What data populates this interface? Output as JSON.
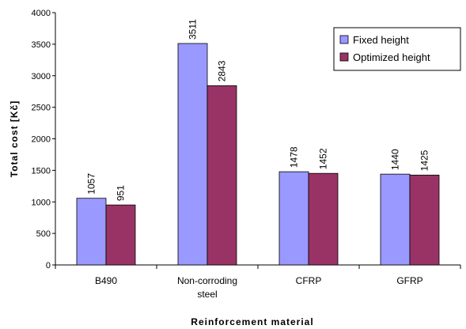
{
  "chart_data": {
    "type": "bar",
    "title": "",
    "xlabel": "Reinforcement material",
    "ylabel": "Total cost [Kč]",
    "ylim": [
      0,
      4000
    ],
    "yticks": [
      0,
      500,
      1000,
      1500,
      2000,
      2500,
      3000,
      3500,
      4000
    ],
    "categories": [
      [
        "B490"
      ],
      [
        "Non-corroding",
        "steel"
      ],
      [
        "CFRP"
      ],
      [
        "GFRP"
      ]
    ],
    "series": [
      {
        "name": "Fixed height",
        "color": "#9999ff",
        "values": [
          1057,
          3511,
          1478,
          1440
        ]
      },
      {
        "name": "Optimized height",
        "color": "#993366",
        "values": [
          951,
          2843,
          1452,
          1425
        ]
      }
    ],
    "grid": false,
    "legend": "top-right"
  }
}
